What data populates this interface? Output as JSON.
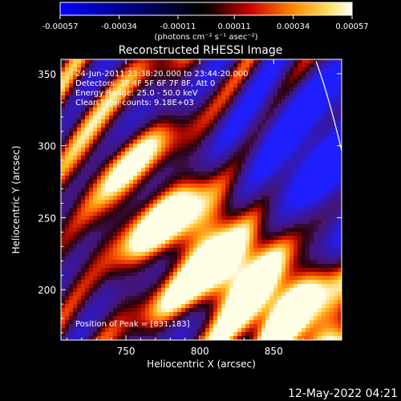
{
  "chart_data": {
    "type": "heatmap",
    "title": "Reconstructed RHESSI Image",
    "colorbar": {
      "ticks": [
        "-0.00057",
        "-0.00034",
        "-0.00011",
        "0.00011",
        "0.00034",
        "0.00057"
      ],
      "min": -0.00057,
      "max": 0.00057,
      "unit_label": "(photons cm⁻² s⁻¹ asec⁻²)",
      "colors": [
        "#0000ff",
        "#000000",
        "#ff0000",
        "#ffa500",
        "#ffffff"
      ]
    },
    "xlabel": "Heliocentric X (arcsec)",
    "ylabel": "Heliocentric Y (arcsec)",
    "xlim": [
      706,
      896
    ],
    "ylim": [
      165,
      360
    ],
    "x_ticks": [
      750,
      800,
      850
    ],
    "y_ticks": [
      200,
      250,
      300,
      350
    ],
    "annotations": [
      "24-Jun-2011 23:38:20.000 to 23:44:20.000",
      "Detectors: 3F 4F 5F 6F 7F 8F, Att 0",
      "Energy Range: 25.0 - 50.0 keV",
      "Clean    Total counts: 9.18E+03"
    ],
    "peak_label": "Position of Peak = [831,183]",
    "peak": [
      831,
      183
    ]
  },
  "footer": {
    "timestamp": "12-May-2022 04:21"
  }
}
